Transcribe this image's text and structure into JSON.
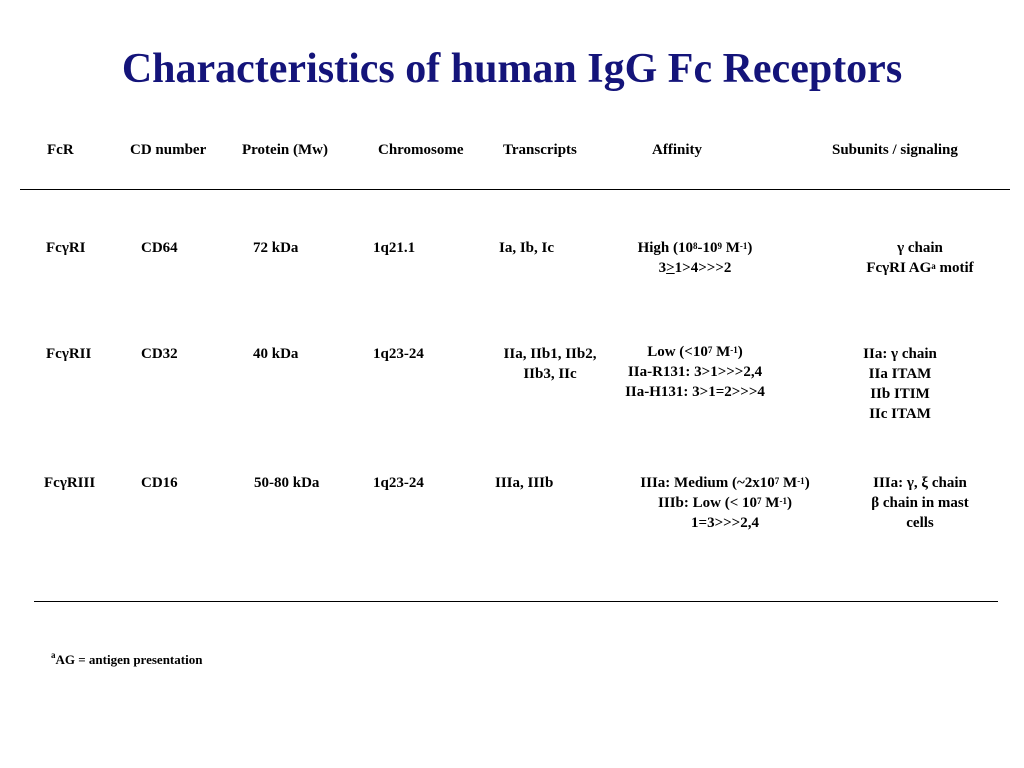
{
  "title": "Characteristics of human IgG Fc Receptors",
  "headers": {
    "fcr": "FcR",
    "cd": "CD number",
    "protein": "Protein (Mw)",
    "chromosome": "Chromosome",
    "transcripts": "Transcripts",
    "affinity": "Affinity",
    "subunits": "Subunits / signaling"
  },
  "rows": [
    {
      "fcr": "FcγRI",
      "cd": "CD64",
      "protein": "72 kDa",
      "chromosome": "1q21.1",
      "transcripts": [
        "Ia, Ib, Ic"
      ],
      "affinity": {
        "l1_pre": "High (10",
        "l1_sup1": "8",
        "l1_mid": "-10",
        "l1_sup2": "9",
        "l1_post1": " M",
        "l1_sup3": "-1",
        "l1_post2": ")",
        "l2_pre": "3",
        "l2_ul": ">",
        "l2_post": "1>4>>>2"
      },
      "subunits": {
        "l1": "γ chain",
        "l2_pre": "FcγRI AG",
        "l2_sup": "a",
        "l2_post": " motif"
      }
    },
    {
      "fcr": "FcγRII",
      "cd": "CD32",
      "protein": "40 kDa",
      "chromosome": "1q23-24",
      "transcripts": [
        "IIa, IIb1, IIb2,",
        "IIb3, IIc"
      ],
      "affinity": {
        "l1_pre": "Low (<10",
        "l1_sup1": "7",
        "l1_post1": " M",
        "l1_sup2": "-1",
        "l1_post2": ")",
        "l2": "IIa-R131:  3>1>>>2,4",
        "l3": "IIa-H131:  3>1=2>>>4"
      },
      "subunits": [
        "IIa: γ chain",
        "IIa ITAM",
        "IIb ITIM",
        "IIc ITAM"
      ]
    },
    {
      "fcr": "FcγRIII",
      "cd": "CD16",
      "protein": "50-80 kDa",
      "chromosome": "1q23-24",
      "transcripts": [
        "IIIa, IIIb"
      ],
      "affinity": {
        "l1_pre": "IIIa: Medium (~2x10",
        "l1_sup1": "7",
        "l1_post1": " M",
        "l1_sup2": "-1",
        "l1_post2": ")",
        "l2_pre": "IIIb: Low (< 10",
        "l2_sup1": "7",
        "l2_post1": " M",
        "l2_sup2": "-1",
        "l2_post2": ")",
        "l3": "1=3>>>2,4"
      },
      "subunits": [
        "IIIa: γ, ξ chain",
        "β chain in mast",
        "cells"
      ]
    }
  ],
  "footnote": {
    "sup": "a",
    "text": "AG = antigen presentation"
  }
}
